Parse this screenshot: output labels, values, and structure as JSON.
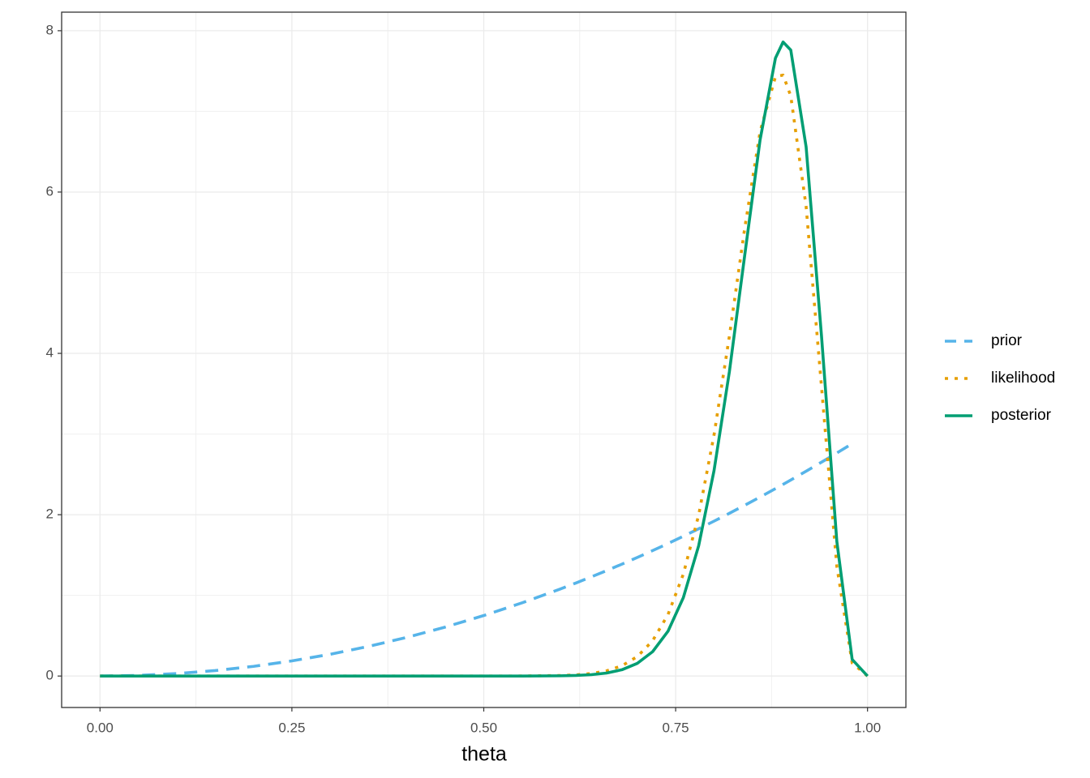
{
  "chart_data": {
    "type": "line",
    "x_label": "theta",
    "x": [
      0,
      0.05,
      0.1,
      0.15,
      0.2,
      0.25,
      0.3,
      0.35,
      0.4,
      0.45,
      0.5,
      0.55,
      0.6,
      0.62,
      0.64,
      0.66,
      0.68,
      0.7,
      0.72,
      0.74,
      0.76,
      0.78,
      0.8,
      0.82,
      0.84,
      0.86,
      0.88,
      0.89,
      0.9,
      0.92,
      0.94,
      0.96,
      0.98,
      1.0
    ],
    "series": [
      {
        "name": "prior",
        "color": "#56B4E9",
        "linetype": "dashed",
        "values": [
          0,
          0.0075,
          0.03,
          0.0675,
          0.12,
          0.1875,
          0.27,
          0.3675,
          0.48,
          0.6075,
          0.75,
          0.9075,
          1.08,
          1.1532,
          1.2288,
          1.3068,
          1.3872,
          1.47,
          1.5552,
          1.6428,
          1.7328,
          1.8252,
          1.92,
          2.0172,
          2.1168,
          2.2188,
          2.3232,
          2.3763,
          2.43,
          2.5392,
          2.6508,
          2.7648,
          2.8812,
          null
        ]
      },
      {
        "name": "likelihood",
        "color": "#E69F00",
        "linetype": "dotted",
        "values": [
          0,
          0,
          0,
          0,
          0,
          0,
          0,
          0,
          0,
          0,
          0,
          0.0007,
          0.0064,
          0.0144,
          0.031,
          0.064,
          0.127,
          0.241,
          0.437,
          0.761,
          1.263,
          1.995,
          2.988,
          4.213,
          5.551,
          6.748,
          7.43,
          7.45,
          7.19,
          5.82,
          3.59,
          1.36,
          0.161,
          0
        ]
      },
      {
        "name": "posterior",
        "color": "#009E73",
        "linetype": "solid",
        "values": [
          0,
          0,
          0,
          0,
          0,
          0,
          0,
          0,
          0,
          0,
          0,
          0.0002,
          0.0031,
          0.0074,
          0.0169,
          0.0372,
          0.0782,
          0.157,
          0.302,
          0.555,
          0.971,
          1.616,
          2.546,
          3.772,
          5.216,
          6.646,
          7.66,
          7.86,
          7.76,
          6.56,
          4.22,
          1.67,
          0.206,
          0
        ]
      }
    ],
    "xlim": [
      -0.05,
      1.05
    ],
    "ylim": [
      -0.39,
      8.23
    ],
    "xticks": [
      {
        "value": 0,
        "label": "0.00"
      },
      {
        "value": 0.25,
        "label": "0.25"
      },
      {
        "value": 0.5,
        "label": "0.50"
      },
      {
        "value": 0.75,
        "label": "0.75"
      },
      {
        "value": 1,
        "label": "1.00"
      }
    ],
    "yticks": [
      0,
      2,
      4,
      6,
      8
    ],
    "grid": true,
    "minor_grid": true,
    "legend_position": "right"
  }
}
